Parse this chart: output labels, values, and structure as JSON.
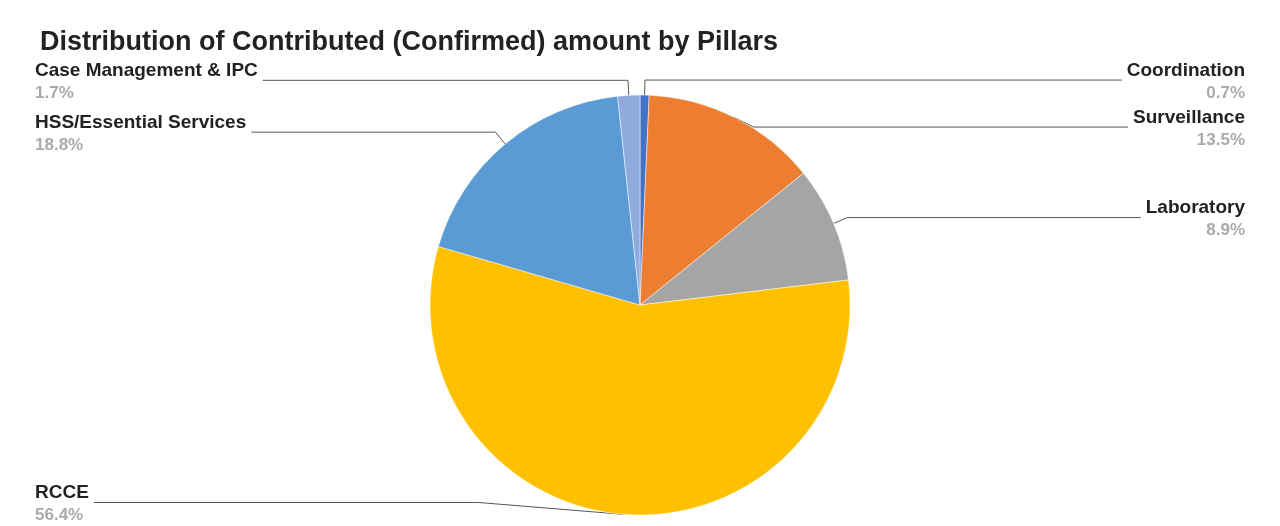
{
  "chart_data": {
    "type": "pie",
    "title": "Distribution of Contributed (Confirmed) amount by Pillars",
    "categories": [
      "Coordination",
      "Surveillance",
      "Laboratory",
      "RCCE",
      "HSS/Essential Services",
      "Case Management & IPC"
    ],
    "values": [
      0.7,
      13.5,
      8.9,
      56.4,
      18.8,
      1.7
    ],
    "value_labels": [
      "0.7%",
      "13.5%",
      "8.9%",
      "56.4%",
      "18.8%",
      "1.7%"
    ],
    "colors": [
      "#4472c4",
      "#ed7d31",
      "#a5a5a5",
      "#ffc000",
      "#5b9bd5",
      "#8faadc"
    ],
    "legend": false
  }
}
